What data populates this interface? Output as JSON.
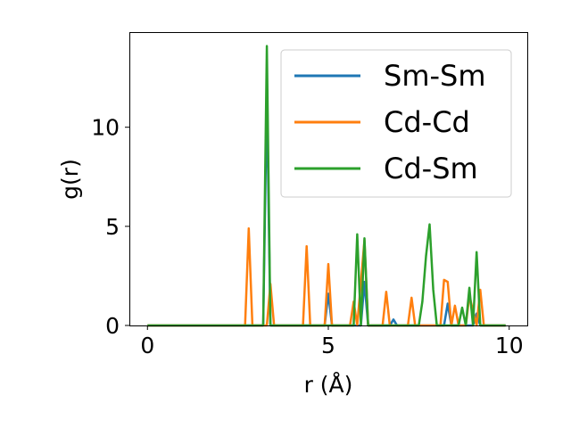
{
  "chart_data": {
    "type": "line",
    "title": "",
    "xlabel": "r (Å)",
    "ylabel": "g(r)",
    "xlim": [
      -0.5,
      10.5
    ],
    "ylim": [
      0,
      14.8
    ],
    "xticks": [
      0,
      5,
      10
    ],
    "yticks": [
      0,
      5,
      10
    ],
    "xtick_labels": [
      "0",
      "5",
      "10"
    ],
    "ytick_labels": [
      "0",
      "5",
      "10"
    ],
    "grid": false,
    "legend_position": "top-right",
    "series": [
      {
        "name": "Sm-Sm",
        "color": "#1f77b4",
        "x": [
          0,
          3.2,
          3.3,
          3.4,
          4.9,
          5.0,
          5.1,
          5.9,
          6.0,
          6.1,
          6.7,
          6.8,
          6.9,
          8.2,
          8.3,
          8.4,
          9.0,
          9.1,
          9.2,
          9.9
        ],
        "y": [
          0,
          0,
          11.6,
          0,
          0,
          1.6,
          0,
          0,
          2.2,
          0,
          0,
          0.3,
          0,
          0,
          1.1,
          0,
          0,
          0.6,
          0,
          0
        ]
      },
      {
        "name": "Cd-Cd",
        "color": "#ff7f0e",
        "x": [
          0,
          2.7,
          2.8,
          2.9,
          3.3,
          3.4,
          3.5,
          4.3,
          4.4,
          4.5,
          4.9,
          5.0,
          5.1,
          5.6,
          5.7,
          5.8,
          6.0,
          6.1,
          6.5,
          6.6,
          6.7,
          7.2,
          7.3,
          7.4,
          8.1,
          8.2,
          8.3,
          8.4,
          8.5,
          8.6,
          8.8,
          8.9,
          9.1,
          9.2,
          9.3,
          9.9
        ],
        "y": [
          0,
          0,
          4.9,
          0,
          0,
          2.1,
          0,
          0,
          4.0,
          0,
          0,
          3.1,
          0,
          0,
          1.2,
          0,
          4.3,
          0,
          0,
          1.7,
          0,
          0,
          1.4,
          0,
          0,
          2.3,
          2.2,
          0,
          1.0,
          0,
          0,
          1.5,
          0,
          1.8,
          0,
          0
        ]
      },
      {
        "name": "Cd-Sm",
        "color": "#2ca02c",
        "x": [
          0,
          3.2,
          3.3,
          3.4,
          5.6,
          5.7,
          5.8,
          5.9,
          6.0,
          6.1,
          7.5,
          7.6,
          7.7,
          7.8,
          7.9,
          8.0,
          8.6,
          8.7,
          8.8,
          8.9,
          9.0,
          9.1,
          9.2,
          9.3,
          9.9
        ],
        "y": [
          0,
          0,
          14.1,
          0,
          0,
          0,
          4.6,
          0,
          4.4,
          0,
          0,
          1.2,
          3.5,
          5.1,
          1.8,
          0,
          0,
          0.9,
          0,
          1.9,
          0,
          3.7,
          0,
          0,
          0
        ]
      }
    ]
  }
}
